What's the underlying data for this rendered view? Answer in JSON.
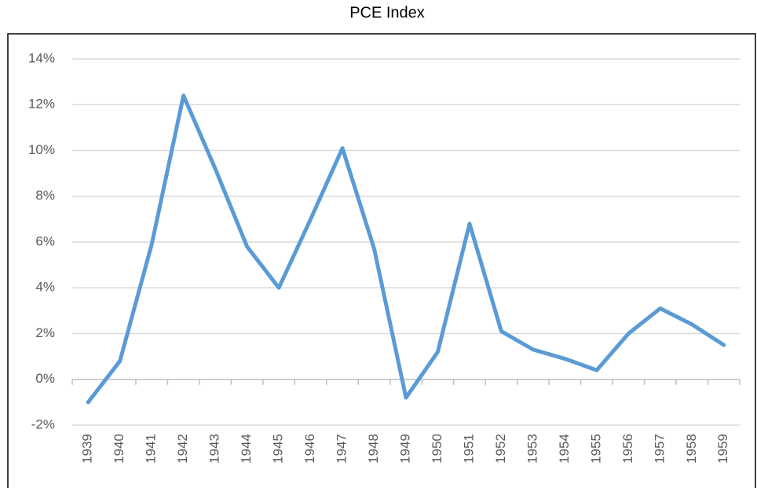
{
  "chart_data": {
    "type": "line",
    "title": "PCE Index",
    "categories": [
      "1939",
      "1940",
      "1941",
      "1942",
      "1943",
      "1944",
      "1945",
      "1946",
      "1947",
      "1948",
      "1949",
      "1950",
      "1951",
      "1952",
      "1953",
      "1954",
      "1955",
      "1956",
      "1957",
      "1958",
      "1959"
    ],
    "series": [
      {
        "name": "PCE Index",
        "color": "#5b9bd5",
        "values": [
          -1.0,
          0.8,
          5.9,
          12.4,
          9.2,
          5.8,
          4.0,
          7.0,
          10.1,
          5.7,
          -0.8,
          1.2,
          6.8,
          2.1,
          1.3,
          0.9,
          0.4,
          2.0,
          3.1,
          2.4,
          1.5
        ]
      }
    ],
    "ylim": [
      -2,
      14
    ],
    "yticks": [
      {
        "value": -2,
        "label": "-2%"
      },
      {
        "value": 0,
        "label": "0%"
      },
      {
        "value": 2,
        "label": "2%"
      },
      {
        "value": 4,
        "label": "4%"
      },
      {
        "value": 6,
        "label": "6%"
      },
      {
        "value": 8,
        "label": "8%"
      },
      {
        "value": 10,
        "label": "10%"
      },
      {
        "value": 12,
        "label": "12%"
      },
      {
        "value": 14,
        "label": "14%"
      }
    ],
    "grid": true
  }
}
